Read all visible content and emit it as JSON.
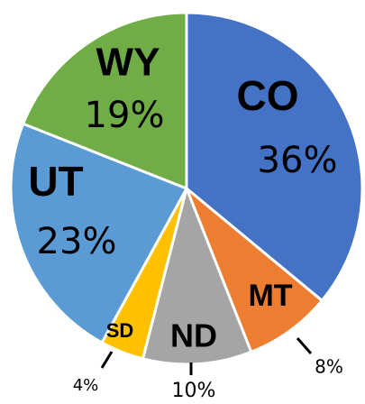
{
  "chart_data": {
    "type": "pie",
    "categories": [
      "CO",
      "MT",
      "ND",
      "SD",
      "UT",
      "WY"
    ],
    "values": [
      36,
      8,
      10,
      4,
      23,
      19
    ],
    "value_labels": [
      "36%",
      "8%",
      "10%",
      "4%",
      "23%",
      "19%"
    ],
    "colors": [
      "#4472c4",
      "#ed7d31",
      "#a5a5a5",
      "#ffc000",
      "#5b9bd5",
      "#70ad47"
    ]
  }
}
